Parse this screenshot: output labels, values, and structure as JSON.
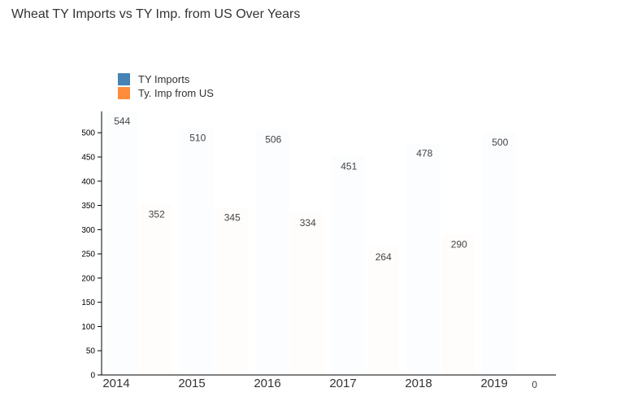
{
  "chart_data": {
    "type": "bar",
    "title": "Wheat TY Imports vs TY Imp. from US Over Years",
    "xlabel": "",
    "ylabel": "",
    "categories": [
      "2014",
      "2015",
      "2016",
      "2017",
      "2018",
      "2019"
    ],
    "series": [
      {
        "name": "TY Imports",
        "color": "#4682b4",
        "values": [
          544,
          510,
          506,
          451,
          478,
          500
        ]
      },
      {
        "name": "Ty. Imp from US",
        "color": "#ff8c3a",
        "values": [
          352,
          345,
          334,
          264,
          290,
          0
        ]
      }
    ],
    "ylim": [
      0,
      544
    ],
    "yticks": [
      0,
      50,
      100,
      150,
      200,
      250,
      300,
      350,
      400,
      450,
      500
    ],
    "legend": "top-left",
    "grid": false,
    "bars_rendered_visible": false
  }
}
